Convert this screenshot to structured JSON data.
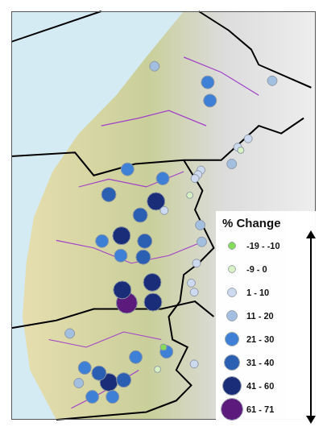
{
  "chart_data": {
    "type": "scatter",
    "legend_title": "% Change",
    "legend": "lower right",
    "grid": false,
    "tick_labels": false,
    "xlim": [
      0,
      406
    ],
    "ylim": [
      0,
      535
    ],
    "series": [
      {
        "name": "-19 - -10",
        "color": "#86dc5a",
        "x": [
          203
        ],
        "y": [
          95
        ]
      },
      {
        "name": "-9 - 0",
        "color": "#d9f2c4",
        "x": [
          306,
          238,
          195
        ],
        "y": [
          353,
          294,
          66
        ]
      },
      {
        "name": "1 - 10",
        "color": "#cdd9ef",
        "x": [
          316,
          253,
          249,
          245,
          204,
          247,
          240,
          244,
          244,
          302
        ],
        "y": [
          368,
          327,
          321,
          316,
          274,
          205,
          179,
          167,
          73,
          357
        ]
      },
      {
        "name": "11 - 20",
        "color": "#a3bfdf",
        "x": [
          191,
          348,
          294,
          252,
          254,
          78,
          90
        ],
        "y": [
          463,
          444,
          335,
          255,
          233,
          113,
          48
        ]
      },
      {
        "name": "21 - 30",
        "color": "#3d80d6",
        "x": [
          262,
          265,
          202,
          155,
          121,
          146,
          207,
          98,
          108,
          135,
          166
        ],
        "y": [
          442,
          418,
          316,
          328,
          234,
          215,
          89,
          68,
          30,
          30,
          82
        ]
      },
      {
        "name": "31 - 40",
        "color": "#2a5fb2",
        "x": [
          130,
          172,
          178,
          176,
          117,
          150
        ],
        "y": [
          295,
          268,
          234,
          213,
          61,
          52
        ]
      },
      {
        "name": "41 - 60",
        "color": "#1a2d78",
        "x": [
          193,
          147,
          148,
          188,
          189,
          130
        ],
        "y": [
          286,
          241,
          170,
          180,
          154,
          49
        ]
      },
      {
        "name": "61 - 71",
        "color": "#5b1a7c",
        "x": [
          154
        ],
        "y": [
          153
        ]
      }
    ]
  }
}
